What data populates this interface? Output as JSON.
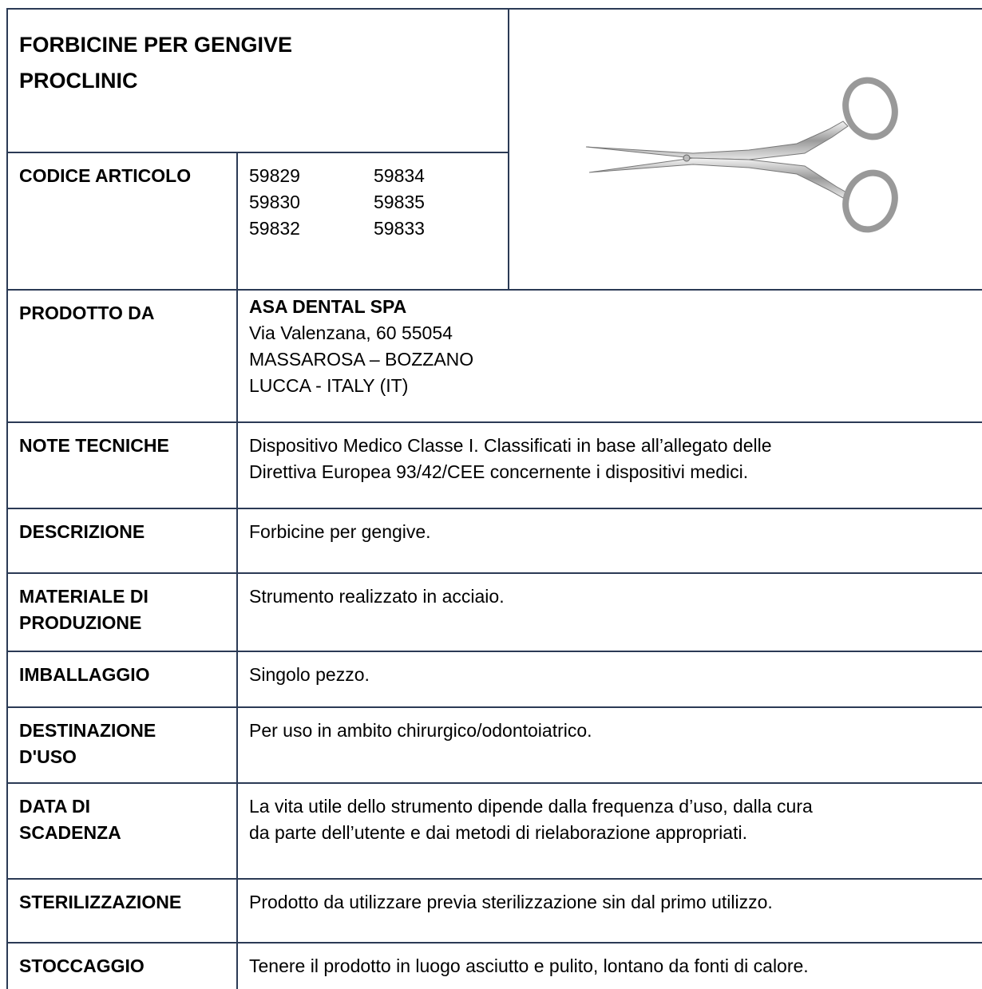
{
  "header": {
    "title": [
      "FORBICINE PER GENGIVE",
      "PROCLINIC"
    ]
  },
  "codes": {
    "label": [
      "CODICE ARTICOLO"
    ],
    "values": [
      "59829",
      "59834",
      "59830",
      "59835",
      "59832",
      "59833"
    ]
  },
  "rows": [
    {
      "label": [
        "PRODOTTO DA"
      ],
      "heading": "ASA DENTAL SPA",
      "text": [
        "Via Valenzana, 60 55054",
        "MASSAROSA – BOZZANO",
        "LUCCA - ITALY (IT)"
      ]
    },
    {
      "label": [
        "NOTE TECNICHE"
      ],
      "text": [
        "Dispositivo Medico Classe I. Classificati in base all’allegato delle",
        "Direttiva Europea 93/42/CEE concernente i dispositivi medici."
      ]
    },
    {
      "label": [
        "DESCRIZIONE"
      ],
      "text": [
        "Forbicine per gengive."
      ]
    },
    {
      "label": [
        "MATERIALE DI",
        "PRODUZIONE"
      ],
      "text": [
        "Strumento realizzato in acciaio."
      ]
    },
    {
      "label": [
        "IMBALLAGGIO"
      ],
      "text": [
        "Singolo pezzo."
      ]
    },
    {
      "label": [
        "DESTINAZIONE",
        "D'USO"
      ],
      "text": [
        "Per uso in ambito chirurgico/odontoiatrico."
      ]
    },
    {
      "label": [
        "DATA DI",
        "SCADENZA"
      ],
      "text": [
        "La vita utile dello strumento dipende dalla frequenza d’uso, dalla cura",
        "da parte dell’utente e dai metodi di rielaborazione appropriati."
      ]
    },
    {
      "label": [
        "STERILIZZAZIONE"
      ],
      "text": [
        "Prodotto da utilizzare previa sterilizzazione sin dal primo utilizzo."
      ]
    },
    {
      "label": [
        "STOCCAGGIO"
      ],
      "text": [
        "Tenere il prodotto in luogo asciutto e pulito, lontano da fonti di calore."
      ]
    }
  ]
}
